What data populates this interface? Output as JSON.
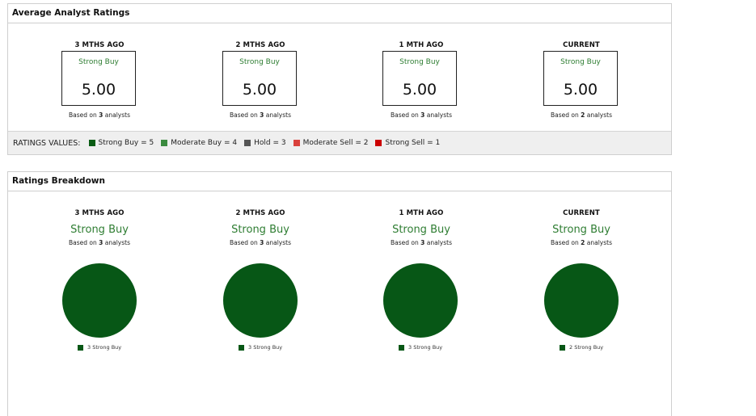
{
  "avg_panel": {
    "title": "Average Analyst Ratings",
    "columns": [
      {
        "heading": "3 MTHS AGO",
        "rating": "Strong Buy",
        "value": "5.00",
        "based_prefix": "Based on ",
        "analysts": "3",
        "based_suffix": " analysts"
      },
      {
        "heading": "2 MTHS AGO",
        "rating": "Strong Buy",
        "value": "5.00",
        "based_prefix": "Based on ",
        "analysts": "3",
        "based_suffix": " analysts"
      },
      {
        "heading": "1 MTH AGO",
        "rating": "Strong Buy",
        "value": "5.00",
        "based_prefix": "Based on ",
        "analysts": "3",
        "based_suffix": " analysts"
      },
      {
        "heading": "CURRENT",
        "rating": "Strong Buy",
        "value": "5.00",
        "based_prefix": "Based on ",
        "analysts": "2",
        "based_suffix": " analysts"
      }
    ]
  },
  "ratings_values": {
    "title": "RATINGS VALUES:",
    "items": [
      {
        "label": "Strong Buy = 5",
        "color": "#0a5c14"
      },
      {
        "label": "Moderate Buy = 4",
        "color": "#3a8a3f"
      },
      {
        "label": "Hold = 3",
        "color": "#555555"
      },
      {
        "label": "Moderate Sell = 2",
        "color": "#d9413c"
      },
      {
        "label": "Strong Sell = 1",
        "color": "#cc0000"
      }
    ]
  },
  "breakdown_panel": {
    "title": "Ratings Breakdown",
    "columns": [
      {
        "heading": "3 MTHS AGO",
        "rating": "Strong Buy",
        "based_prefix": "Based on ",
        "analysts": "3",
        "based_suffix": " analysts",
        "legend": "3 Strong Buy"
      },
      {
        "heading": "2 MTHS AGO",
        "rating": "Strong Buy",
        "based_prefix": "Based on ",
        "analysts": "3",
        "based_suffix": " analysts",
        "legend": "3 Strong Buy"
      },
      {
        "heading": "1 MTH AGO",
        "rating": "Strong Buy",
        "based_prefix": "Based on ",
        "analysts": "3",
        "based_suffix": " analysts",
        "legend": "3 Strong Buy"
      },
      {
        "heading": "CURRENT",
        "rating": "Strong Buy",
        "based_prefix": "Based on ",
        "analysts": "2",
        "based_suffix": " analysts",
        "legend": "2 Strong Buy"
      }
    ],
    "pie_color": "#075716"
  }
}
